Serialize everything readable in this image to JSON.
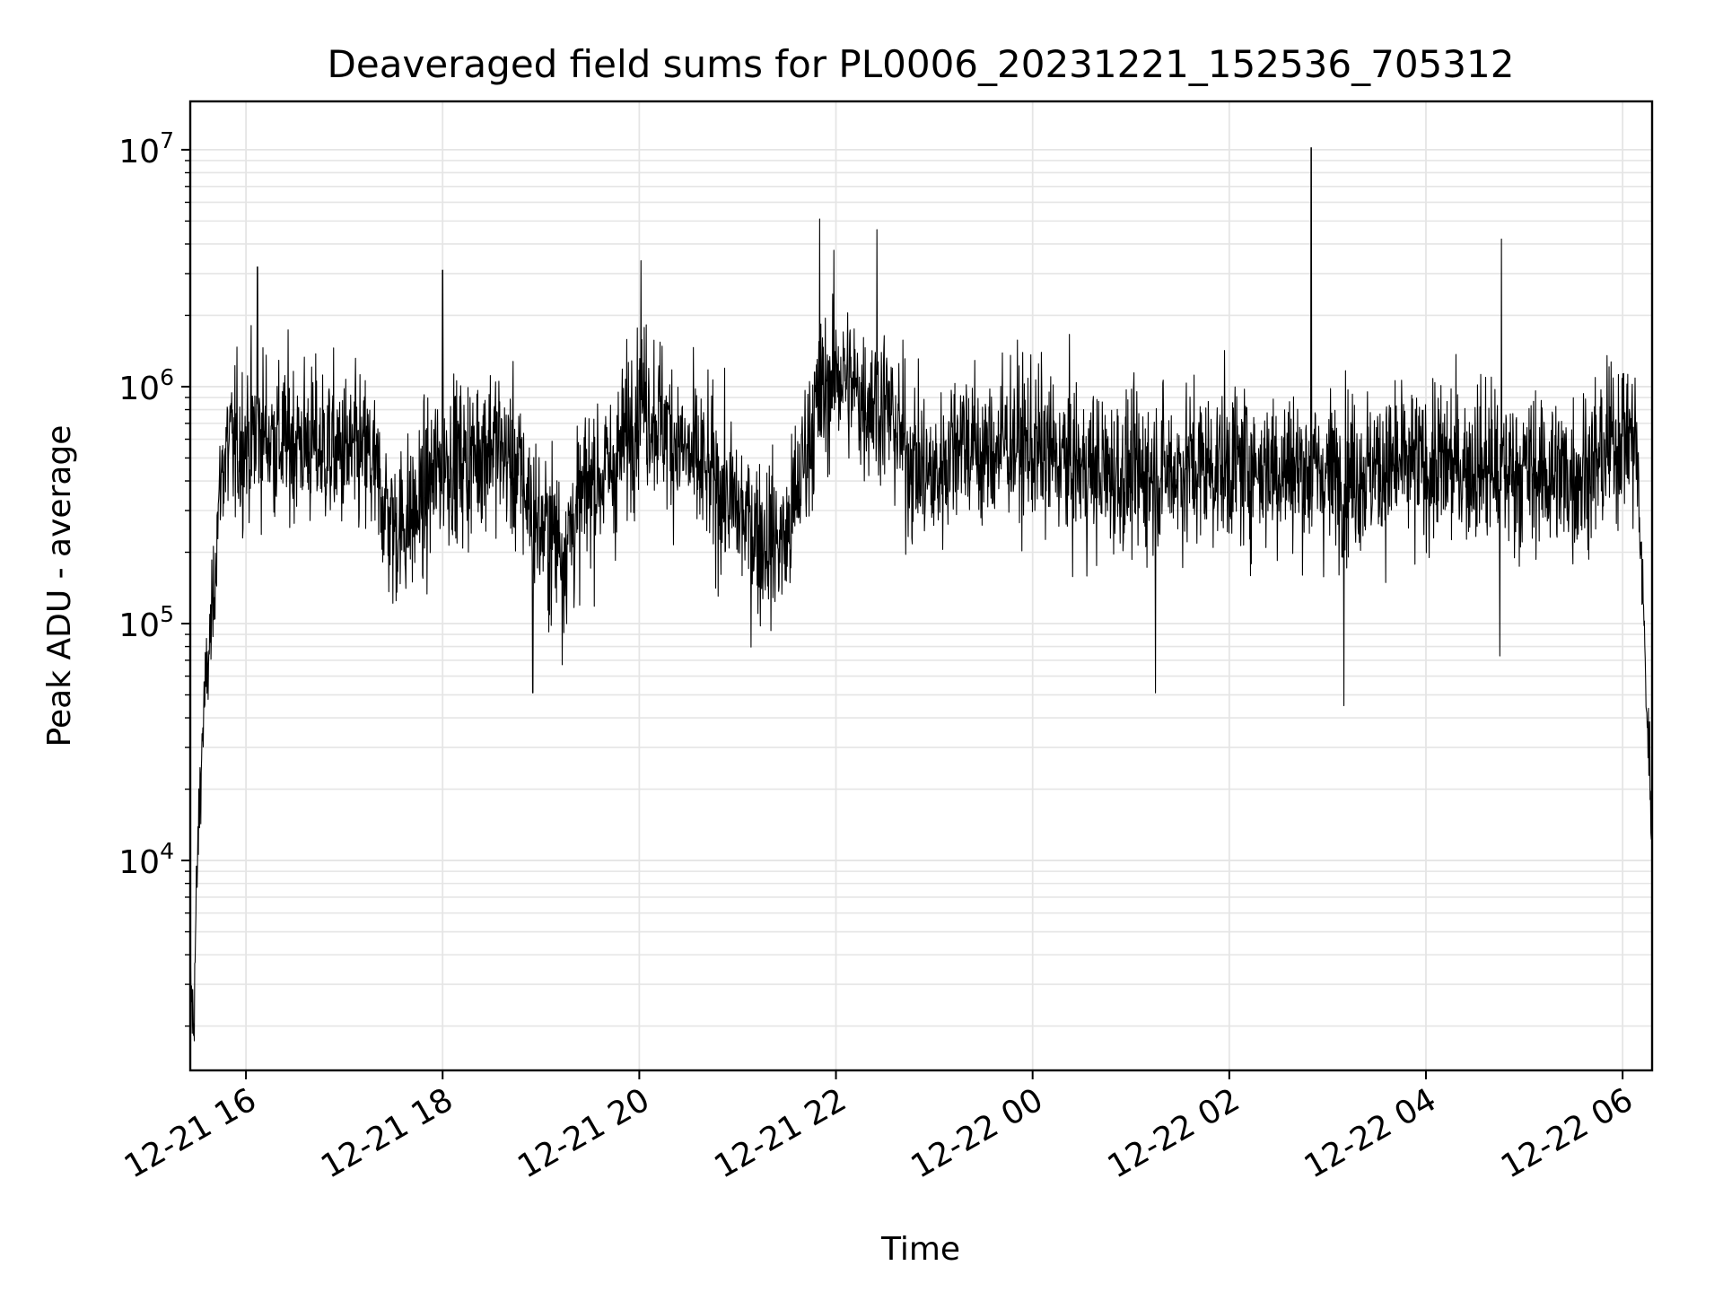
{
  "chart_data": {
    "type": "line",
    "title": "Deaveraged field sums for PL0006_20231221_152536_705312",
    "xlabel": "Time",
    "ylabel": "Peak ADU - average",
    "yscale": "log",
    "grid": true,
    "legend": "none",
    "colors": {
      "line": "#000000",
      "grid": "#e5e5e5",
      "axes": "#000000",
      "background": "#ffffff"
    },
    "xlim": [
      "2023-12-21 15:26",
      "2023-12-22 06:18"
    ],
    "ylim": [
      1300,
      16000000
    ],
    "x_ticks": [
      {
        "value": "2023-12-21 16:00",
        "label": "12-21 16"
      },
      {
        "value": "2023-12-21 18:00",
        "label": "12-21 18"
      },
      {
        "value": "2023-12-21 20:00",
        "label": "12-21 20"
      },
      {
        "value": "2023-12-21 22:00",
        "label": "12-21 22"
      },
      {
        "value": "2023-12-22 00:00",
        "label": "12-22 00"
      },
      {
        "value": "2023-12-22 02:00",
        "label": "12-22 02"
      },
      {
        "value": "2023-12-22 04:00",
        "label": "12-22 04"
      },
      {
        "value": "2023-12-22 06:00",
        "label": "12-22 06"
      }
    ],
    "y_ticks": [
      {
        "value": 10000,
        "base": "10",
        "exp": "4"
      },
      {
        "value": 100000,
        "base": "10",
        "exp": "5"
      },
      {
        "value": 1000000,
        "base": "10",
        "exp": "6"
      },
      {
        "value": 10000000,
        "base": "10",
        "exp": "7"
      }
    ],
    "series": [
      {
        "x": [
          "2023-12-21 15:26",
          "2023-12-21 15:28",
          "2023-12-21 15:30",
          "2023-12-21 15:32",
          "2023-12-21 15:34",
          "2023-12-21 15:37",
          "2023-12-21 15:40",
          "2023-12-21 15:43",
          "2023-12-21 15:46",
          "2023-12-21 15:50",
          "2023-12-21 15:55",
          "2023-12-21 16:00",
          "2023-12-21 16:10",
          "2023-12-21 16:20",
          "2023-12-21 16:30",
          "2023-12-21 16:45",
          "2023-12-21 17:00",
          "2023-12-21 17:15",
          "2023-12-21 17:30",
          "2023-12-21 17:45",
          "2023-12-21 18:00",
          "2023-12-21 18:15",
          "2023-12-21 18:30",
          "2023-12-21 18:45",
          "2023-12-21 19:00",
          "2023-12-21 19:15",
          "2023-12-21 19:30",
          "2023-12-21 19:45",
          "2023-12-21 20:00",
          "2023-12-21 20:15",
          "2023-12-21 20:30",
          "2023-12-21 20:45",
          "2023-12-21 21:00",
          "2023-12-21 21:15",
          "2023-12-21 21:30",
          "2023-12-21 21:45",
          "2023-12-21 22:00",
          "2023-12-21 22:15",
          "2023-12-21 22:30",
          "2023-12-21 22:45",
          "2023-12-21 23:00",
          "2023-12-21 23:15",
          "2023-12-21 23:30",
          "2023-12-21 23:45",
          "2023-12-22 00:00",
          "2023-12-22 00:30",
          "2023-12-22 01:00",
          "2023-12-22 01:30",
          "2023-12-22 02:00",
          "2023-12-22 02:30",
          "2023-12-22 03:00",
          "2023-12-22 03:30",
          "2023-12-22 04:00",
          "2023-12-22 04:30",
          "2023-12-22 05:00",
          "2023-12-22 05:30",
          "2023-12-22 05:45",
          "2023-12-22 06:00",
          "2023-12-22 06:08",
          "2023-12-22 06:12",
          "2023-12-22 06:15",
          "2023-12-22 06:18"
        ],
        "y": [
          3000,
          2000,
          8000,
          20000,
          40000,
          70000,
          120000,
          300000,
          500000,
          550000,
          550000,
          600000,
          650000,
          580000,
          600000,
          550000,
          520000,
          500000,
          250000,
          300000,
          500000,
          480000,
          600000,
          450000,
          250000,
          220000,
          400000,
          450000,
          900000,
          700000,
          500000,
          400000,
          300000,
          230000,
          220000,
          700000,
          1200000,
          900000,
          850000,
          500000,
          400000,
          650000,
          500000,
          600000,
          550000,
          450000,
          420000,
          450000,
          470000,
          460000,
          430000,
          450000,
          460000,
          470000,
          440000,
          420000,
          480000,
          650000,
          600000,
          150000,
          40000,
          15000
        ],
        "spikes": [
          {
            "x": "2023-12-21 16:07",
            "y": 3200000
          },
          {
            "x": "2023-12-21 18:00",
            "y": 3100000
          },
          {
            "x": "2023-12-21 20:01",
            "y": 3400000
          },
          {
            "x": "2023-12-21 21:50",
            "y": 5100000
          },
          {
            "x": "2023-12-21 22:25",
            "y": 4600000
          },
          {
            "x": "2023-12-22 02:50",
            "y": 10200000
          },
          {
            "x": "2023-12-22 04:46",
            "y": 4200000
          },
          {
            "x": "2023-12-21 18:55",
            "y": 51000
          },
          {
            "x": "2023-12-21 19:13",
            "y": 67000
          },
          {
            "x": "2023-12-22 01:15",
            "y": 51000
          },
          {
            "x": "2023-12-22 03:10",
            "y": 45000
          },
          {
            "x": "2023-12-22 04:45",
            "y": 73000
          }
        ]
      }
    ]
  }
}
